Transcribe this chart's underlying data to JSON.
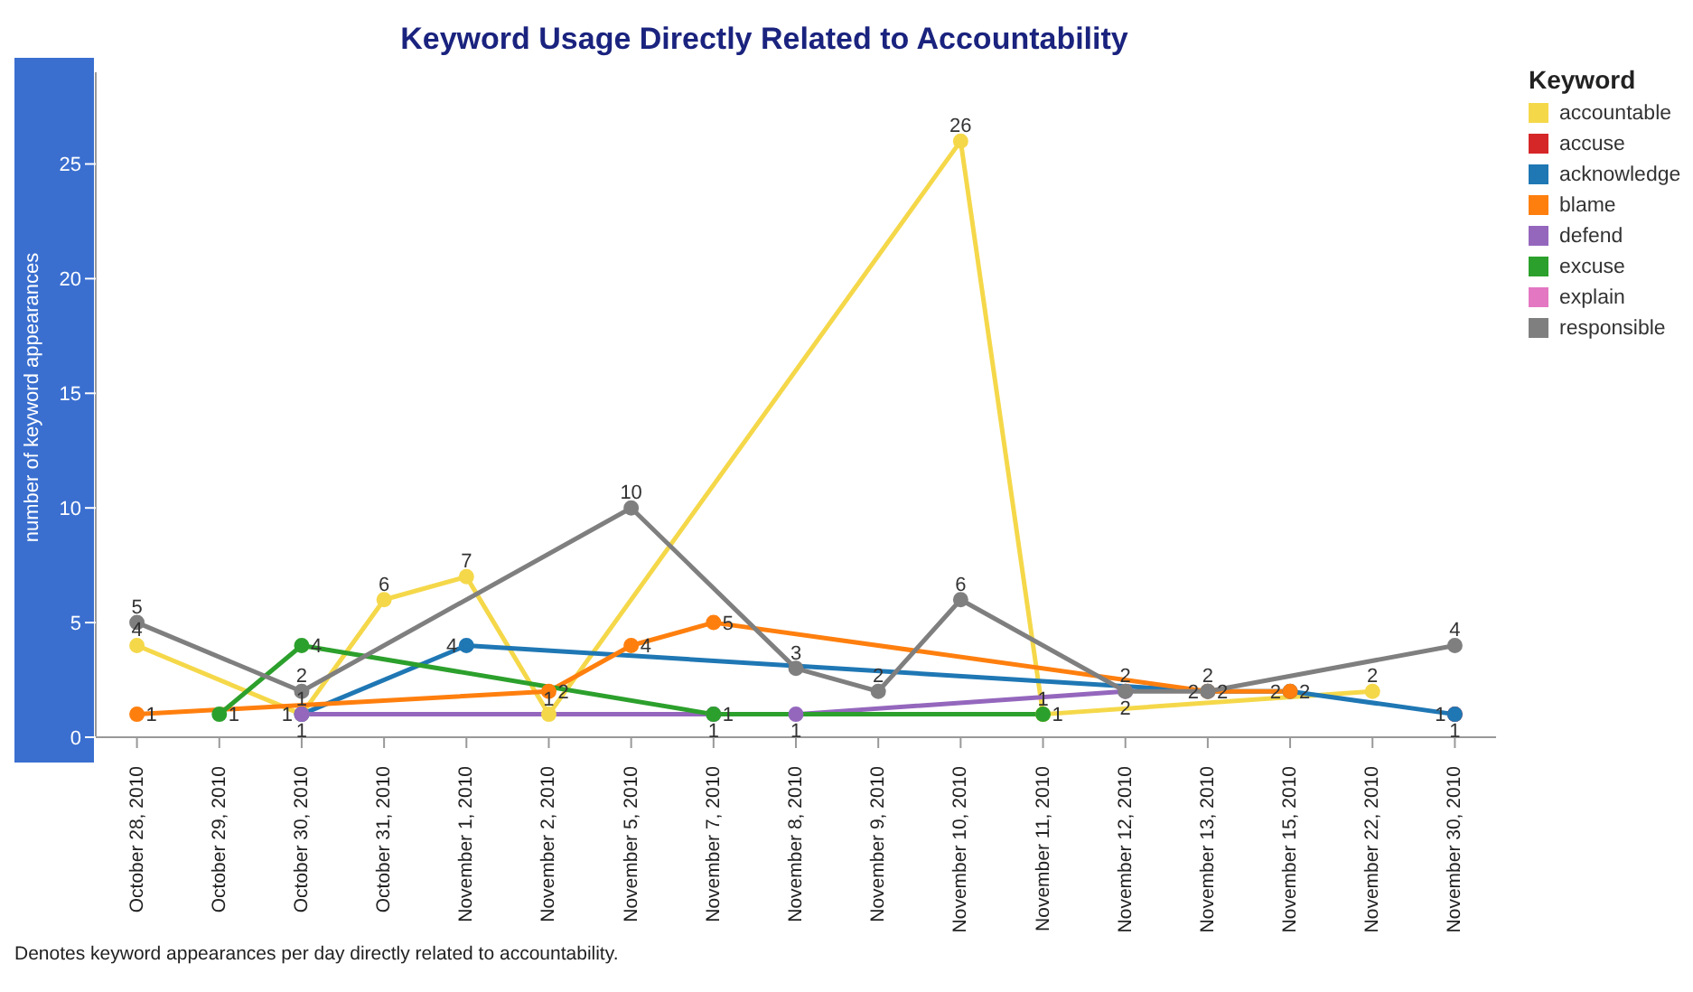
{
  "chart_data": {
    "type": "line",
    "title": "Keyword Usage Directly Related to Accountability",
    "ylabel": "number of keyword appearances",
    "legend_title": "Keyword",
    "annotations": [
      "Denotes keyword appearances per day directly related to accountability."
    ],
    "categories": [
      "October 28, 2010",
      "October 29, 2010",
      "October 30, 2010",
      "October 31, 2010",
      "November 1, 2010",
      "November 2, 2010",
      "November 5, 2010",
      "November 7, 2010",
      "November 8, 2010",
      "November 9, 2010",
      "November 10, 2010",
      "November 11, 2010",
      "November 12, 2010",
      "November 13, 2010",
      "November 15, 2010",
      "November 22, 2010",
      "November 30, 2010"
    ],
    "series": [
      {
        "name": "accountable",
        "color": "#f5d84a",
        "values": [
          4,
          null,
          1,
          6,
          7,
          1,
          null,
          null,
          null,
          null,
          26,
          1,
          null,
          null,
          null,
          2,
          null
        ]
      },
      {
        "name": "accuse",
        "color": "#d62728",
        "values": [
          null,
          null,
          null,
          null,
          null,
          null,
          null,
          null,
          null,
          null,
          null,
          null,
          null,
          null,
          null,
          null,
          1
        ]
      },
      {
        "name": "acknowledge",
        "color": "#1f77b4",
        "values": [
          null,
          null,
          1,
          null,
          4,
          null,
          null,
          null,
          null,
          null,
          null,
          null,
          null,
          2,
          2,
          null,
          1
        ]
      },
      {
        "name": "blame",
        "color": "#ff7f0e",
        "values": [
          1,
          null,
          null,
          null,
          null,
          2,
          4,
          5,
          null,
          null,
          null,
          null,
          null,
          2,
          2,
          null,
          null
        ]
      },
      {
        "name": "defend",
        "color": "#9467bd",
        "values": [
          null,
          null,
          1,
          null,
          null,
          null,
          null,
          1,
          1,
          null,
          null,
          null,
          2,
          null,
          null,
          null,
          null
        ]
      },
      {
        "name": "excuse",
        "color": "#2ca02c",
        "values": [
          null,
          1,
          4,
          null,
          null,
          null,
          null,
          1,
          null,
          null,
          null,
          1,
          null,
          null,
          null,
          null,
          null
        ]
      },
      {
        "name": "explain",
        "color": "#e377c2",
        "values": [
          null,
          null,
          null,
          null,
          null,
          null,
          null,
          null,
          null,
          null,
          null,
          null,
          null,
          null,
          null,
          null,
          null
        ]
      },
      {
        "name": "responsible",
        "color": "#7f7f7f",
        "values": [
          5,
          null,
          2,
          null,
          null,
          null,
          10,
          null,
          3,
          2,
          6,
          null,
          2,
          2,
          null,
          null,
          4
        ]
      }
    ],
    "ylim": [
      0,
      29
    ],
    "yticks": [
      0,
      5,
      10,
      15,
      20,
      25
    ],
    "grid": false,
    "legend": "top right",
    "marker": "circle",
    "data_labels": true
  }
}
